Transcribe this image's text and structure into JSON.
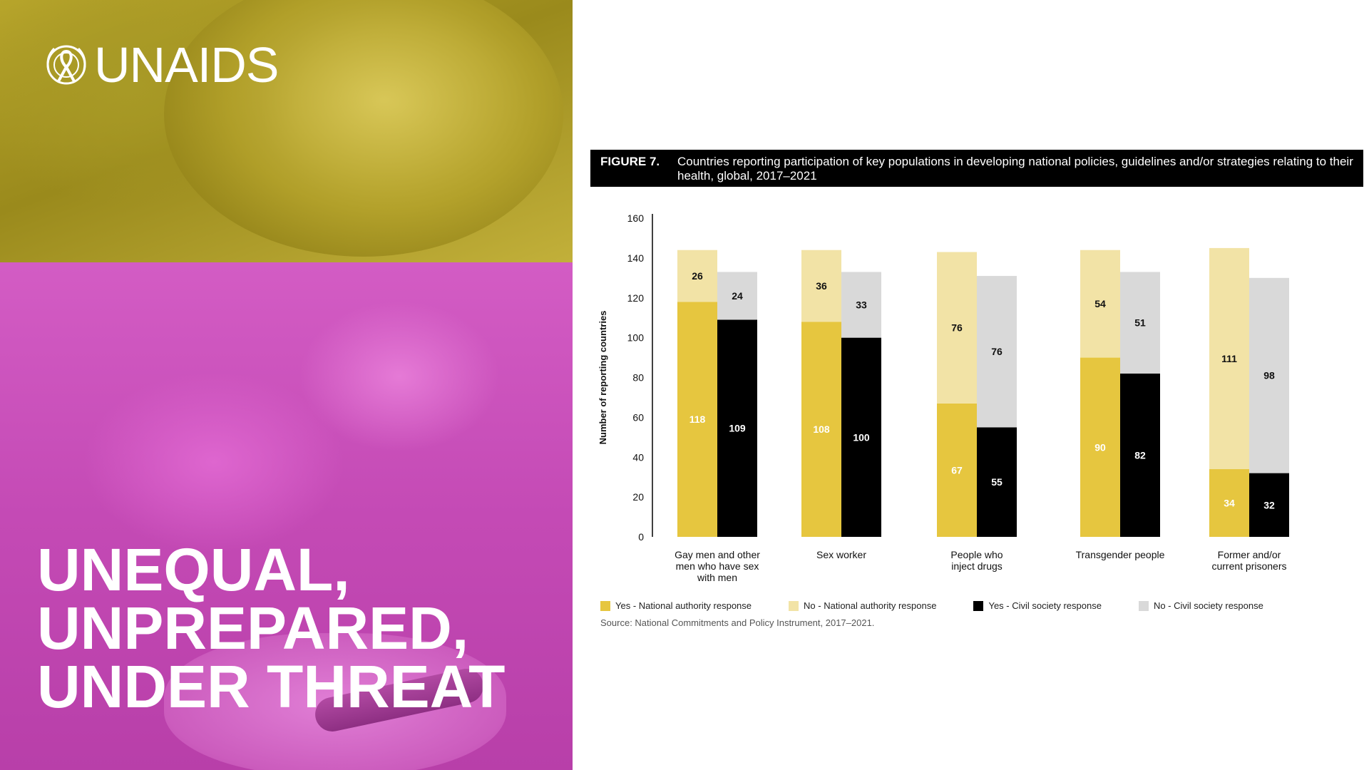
{
  "brand": {
    "logo_text": "UNAIDS",
    "logo_icon": "un-emblem-ribbon-icon"
  },
  "headline": {
    "lines": [
      "UNEQUAL,",
      "UNPREPARED,",
      "UNDER THREAT"
    ]
  },
  "figure": {
    "label": "FIGURE 7.",
    "title": "Countries reporting participation of key populations in developing national policies, guidelines and/or strategies relating to their health, global, 2017–2021",
    "source": "Source: National Commitments and Policy Instrument, 2017–2021."
  },
  "colors": {
    "top_photo": "#b7a52b",
    "bottom_photo": "#c44ab5",
    "yes_national": "#e6c63f",
    "no_national": "#f2e3a6",
    "yes_civil": "#000000",
    "no_civil": "#d9d9d9"
  },
  "chart_data": {
    "type": "bar",
    "stacked": true,
    "grouped": true,
    "ylabel": "Number of reporting countries",
    "ylim": [
      0,
      160
    ],
    "yticks": [
      0,
      20,
      40,
      60,
      80,
      100,
      120,
      140,
      160
    ],
    "categories": [
      [
        "Gay men and other",
        "men who have sex",
        "with men"
      ],
      [
        "Sex worker"
      ],
      [
        "People who",
        "inject drugs"
      ],
      [
        "Transgender people"
      ],
      [
        "Former and/or",
        "current prisoners"
      ]
    ],
    "series": [
      {
        "name": "Yes - National authority response",
        "group": "national",
        "values": [
          118,
          108,
          67,
          90,
          34
        ]
      },
      {
        "name": "No - National authority response",
        "group": "national",
        "values": [
          26,
          36,
          76,
          54,
          111
        ]
      },
      {
        "name": "Yes - Civil society response",
        "group": "civil",
        "values": [
          109,
          100,
          55,
          82,
          32
        ]
      },
      {
        "name": "No - Civil society response",
        "group": "civil",
        "values": [
          24,
          33,
          76,
          51,
          98
        ]
      }
    ],
    "legend": "bottom"
  }
}
